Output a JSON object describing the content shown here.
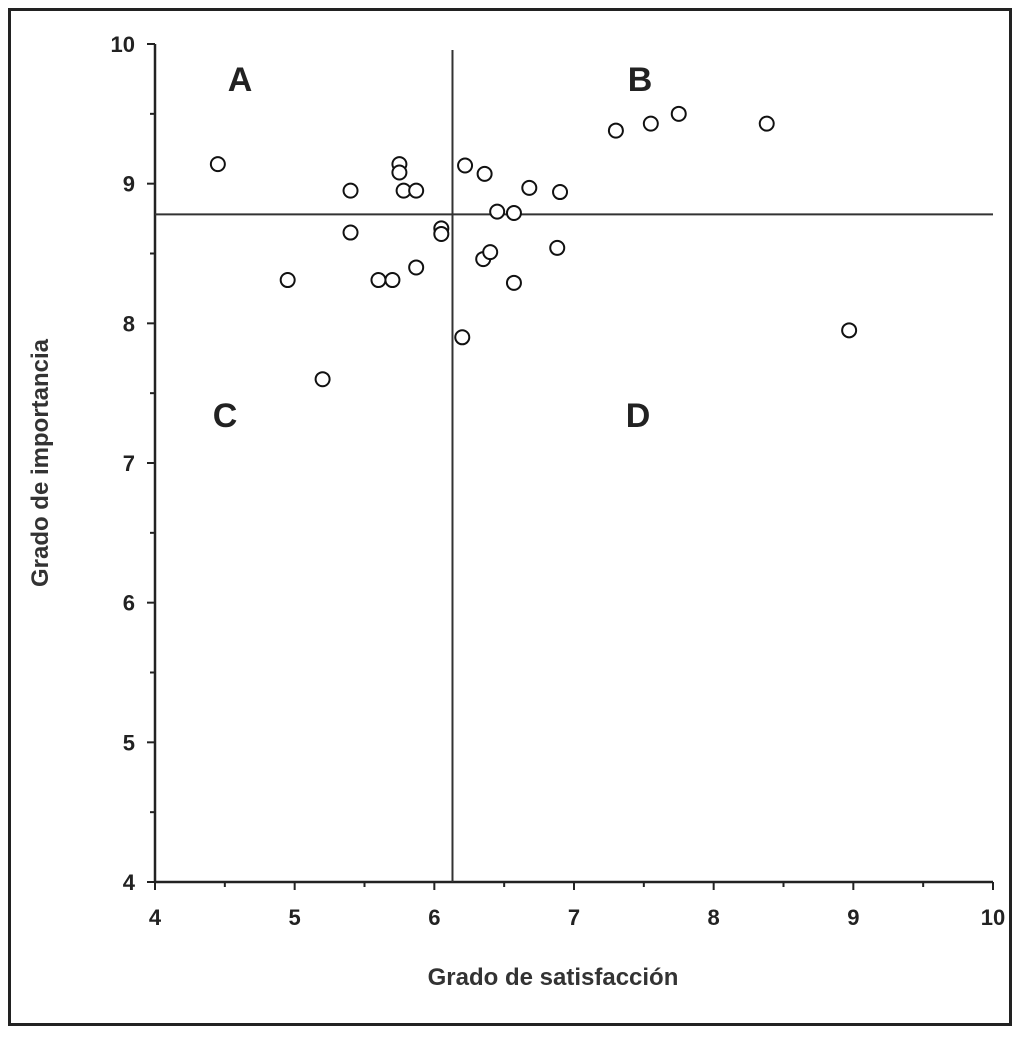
{
  "chart_data": {
    "type": "scatter",
    "xlabel": "Grado de satisfacción",
    "ylabel": "Grado de importancia",
    "xlim": [
      4,
      10
    ],
    "ylim": [
      4,
      10
    ],
    "x_ticks": [
      "4",
      "5",
      "6",
      "7",
      "8",
      "9",
      "10"
    ],
    "y_ticks": [
      "4",
      "5",
      "6",
      "7",
      "8",
      "9",
      "10"
    ],
    "x_reference_line": 6.13,
    "y_reference_line": 8.78,
    "quadrant_labels": [
      "A",
      "B",
      "C",
      "D"
    ],
    "marker": "open-circle",
    "series": [
      {
        "points": [
          {
            "x": 4.45,
            "y": 9.14
          },
          {
            "x": 4.95,
            "y": 8.31
          },
          {
            "x": 5.2,
            "y": 7.6
          },
          {
            "x": 5.4,
            "y": 8.95
          },
          {
            "x": 5.4,
            "y": 8.65
          },
          {
            "x": 5.6,
            "y": 8.31
          },
          {
            "x": 5.7,
            "y": 8.31
          },
          {
            "x": 5.75,
            "y": 9.14
          },
          {
            "x": 5.75,
            "y": 9.08
          },
          {
            "x": 5.78,
            "y": 8.95
          },
          {
            "x": 5.87,
            "y": 8.95
          },
          {
            "x": 5.87,
            "y": 8.4
          },
          {
            "x": 6.05,
            "y": 8.68
          },
          {
            "x": 6.05,
            "y": 8.64
          },
          {
            "x": 6.2,
            "y": 7.9
          },
          {
            "x": 6.22,
            "y": 9.13
          },
          {
            "x": 6.36,
            "y": 9.07
          },
          {
            "x": 6.35,
            "y": 8.46
          },
          {
            "x": 6.4,
            "y": 8.51
          },
          {
            "x": 6.45,
            "y": 8.8
          },
          {
            "x": 6.57,
            "y": 8.79
          },
          {
            "x": 6.57,
            "y": 8.29
          },
          {
            "x": 6.68,
            "y": 8.97
          },
          {
            "x": 6.9,
            "y": 8.94
          },
          {
            "x": 6.88,
            "y": 8.54
          },
          {
            "x": 7.3,
            "y": 9.38
          },
          {
            "x": 7.55,
            "y": 9.43
          },
          {
            "x": 7.75,
            "y": 9.5
          },
          {
            "x": 8.38,
            "y": 9.43
          },
          {
            "x": 8.97,
            "y": 7.95
          }
        ]
      }
    ]
  }
}
